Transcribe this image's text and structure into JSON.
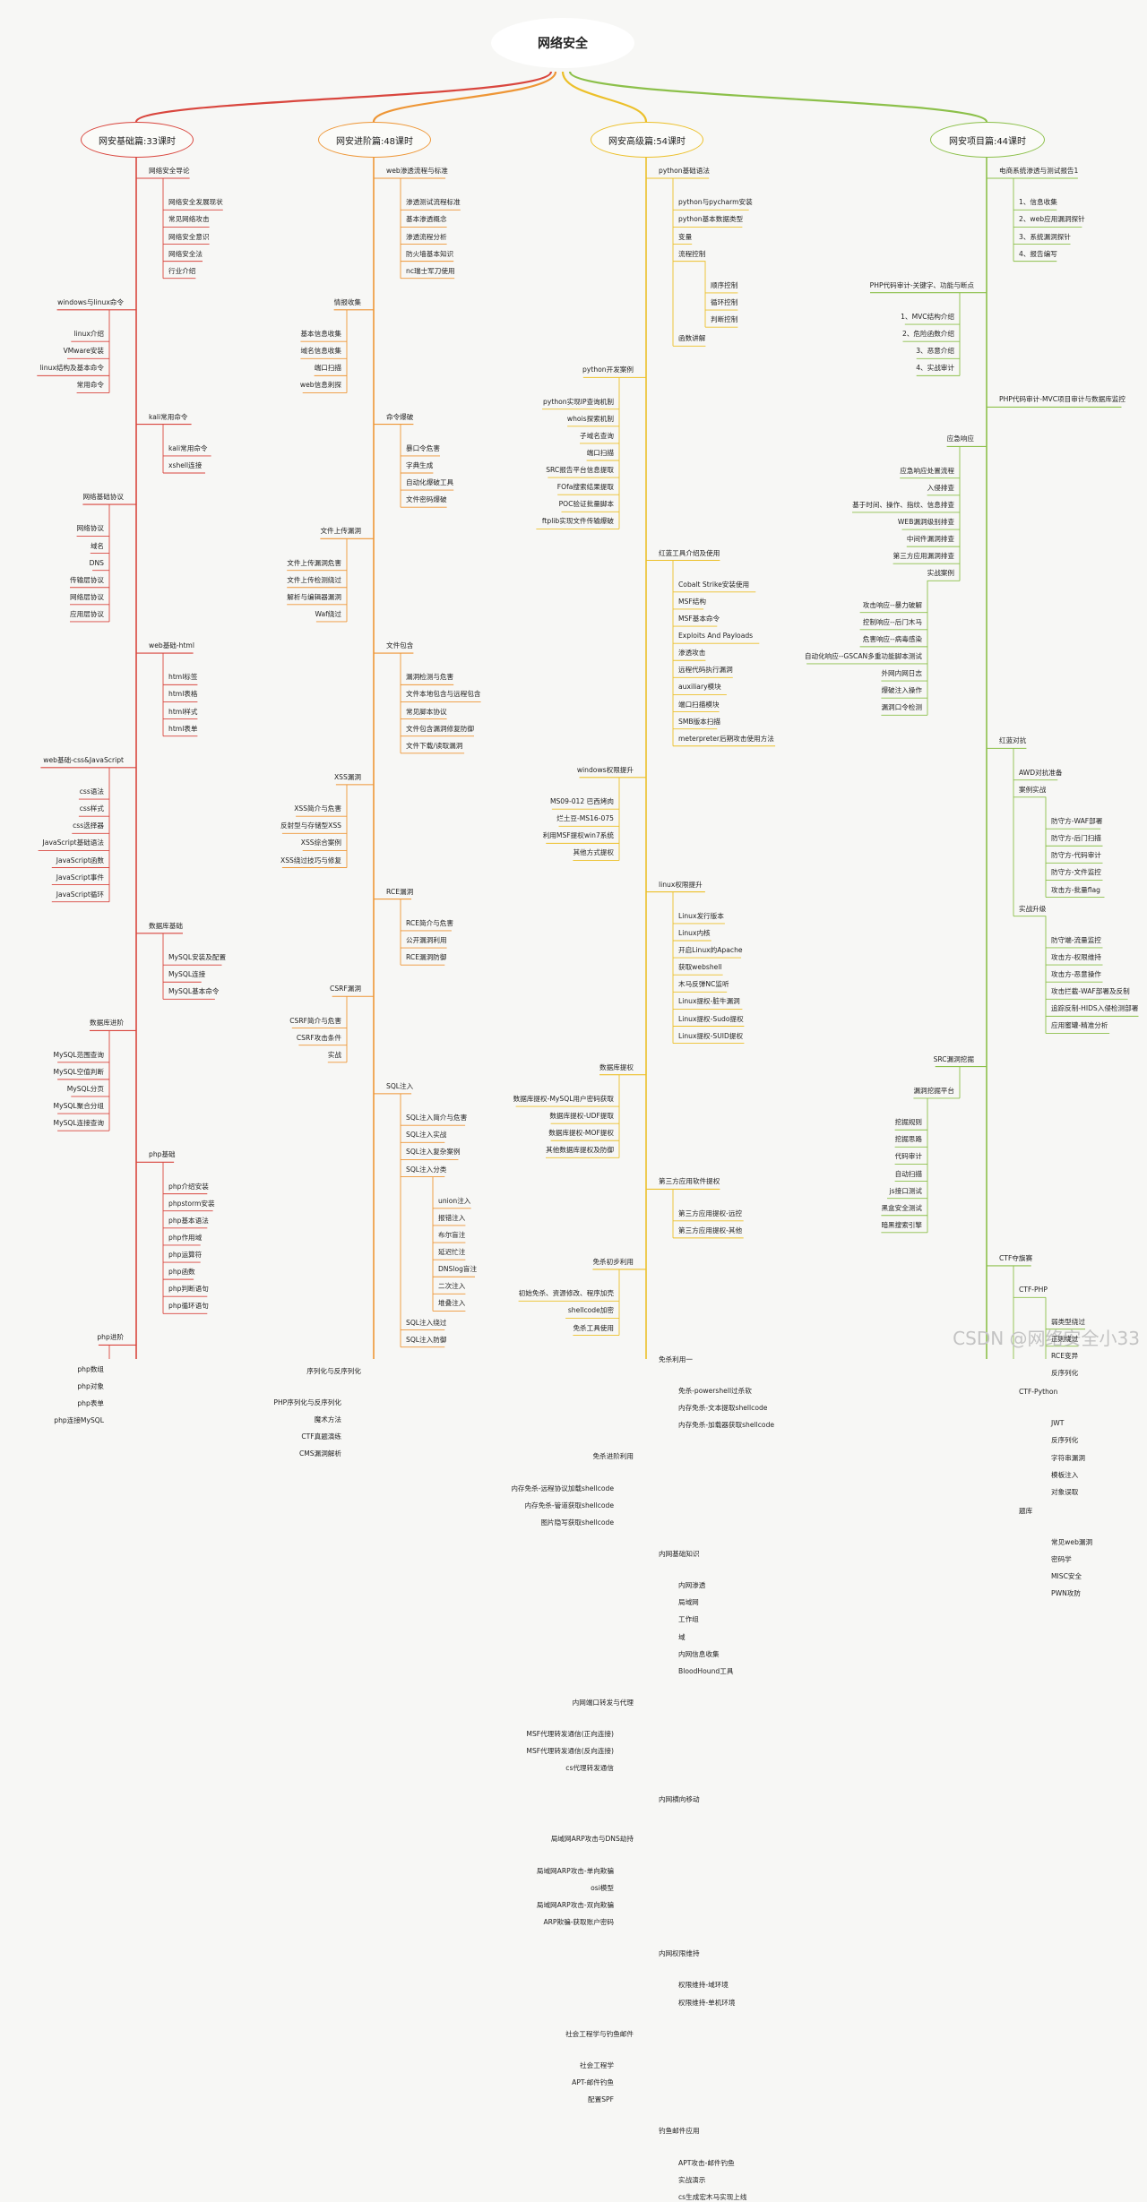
{
  "root": "网络安全",
  "watermark": "CSDN @网络安全小33",
  "colors": {
    "s0": "#d9463e",
    "s1": "#ee9636",
    "s2": "#ecc02a",
    "s3": "#8cc04a"
  },
  "sections": [
    {
      "title": "网安基础篇:33课时",
      "groups": [
        {
          "label": "网络安全导论",
          "side": "r",
          "children": [
            "网络安全发展现状",
            "常见网络攻击",
            "网络安全意识",
            "网络安全法",
            "行业介绍"
          ]
        },
        {
          "label": "windows与linux命令",
          "side": "l",
          "children": [
            "linux介绍",
            "VMware安装",
            "linux结构及基本命令",
            "常用命令"
          ]
        },
        {
          "label": "kali常用命令",
          "side": "r",
          "children": [
            "kali常用命令",
            "xshell连接"
          ]
        },
        {
          "label": "网络基础协议",
          "side": "l",
          "children": [
            "网络协议",
            "域名",
            "DNS",
            "传输层协议",
            "网络层协议",
            "应用层协议"
          ]
        },
        {
          "label": "web基础-html",
          "side": "r",
          "children": [
            "html标签",
            "html表格",
            "html样式",
            "html表单"
          ]
        },
        {
          "label": "web基础-css&JavaScript",
          "side": "l",
          "children": [
            "css语法",
            "css样式",
            "css选择器",
            "JavaScript基础语法",
            "JavaScript函数",
            "JavaScript事件",
            "JavaScript循环"
          ]
        },
        {
          "label": "数据库基础",
          "side": "r",
          "children": [
            "MySQL安装及配置",
            "MySQL连接",
            "MySQL基本命令"
          ]
        },
        {
          "label": "数据库进阶",
          "side": "l",
          "children": [
            "MySQL范围查询",
            "MySQL空值判断",
            "MySQL分页",
            "MySQL聚合分组",
            "MySQL连接查询"
          ]
        },
        {
          "label": "php基础",
          "side": "r",
          "children": [
            "php介绍安装",
            "phpstorm安装",
            "php基本语法",
            "php作用域",
            "php运算符",
            "php函数",
            "php判断语句",
            "php循环语句"
          ]
        },
        {
          "label": "php进阶",
          "side": "l",
          "children": [
            "php数组",
            "php对象",
            "php表单",
            "php连接MySQL"
          ]
        }
      ]
    },
    {
      "title": "网安进阶篇:48课时",
      "groups": [
        {
          "label": "web渗透流程与标准",
          "side": "r",
          "children": [
            "渗透测试流程标准",
            "基本渗透概念",
            "渗透流程分析",
            "防火墙基本知识",
            "nc瑞士军刀使用"
          ]
        },
        {
          "label": "情报收集",
          "side": "l",
          "children": [
            "基本信息收集",
            "域名信息收集",
            "端口扫描",
            "web信息刺探"
          ]
        },
        {
          "label": "命令爆破",
          "side": "r",
          "children": [
            "暴口令危害",
            "字典生成",
            "自动化爆破工具",
            "文件密码爆破"
          ]
        },
        {
          "label": "文件上传漏洞",
          "side": "l",
          "children": [
            "文件上传漏洞危害",
            "文件上传检测绕过",
            "解析与编辑器漏洞",
            "Waf绕过"
          ]
        },
        {
          "label": "文件包含",
          "side": "r",
          "children": [
            "漏洞检测与危害",
            "文件本地包含与远程包含",
            "常见脚本协议",
            "文件包含漏洞修复防御",
            "文件下载/读取漏洞"
          ]
        },
        {
          "label": "XSS漏洞",
          "side": "l",
          "children": [
            "XSS简介与危害",
            "反射型与存储型XSS",
            "XSS综合案例",
            "XSS绕过技巧与修复"
          ]
        },
        {
          "label": "RCE漏洞",
          "side": "r",
          "children": [
            "RCE简介与危害",
            "公开漏洞利用",
            "RCE漏洞防御"
          ]
        },
        {
          "label": "CSRF漏洞",
          "side": "l",
          "children": [
            "CSRF简介与危害",
            "CSRF攻击条件",
            "实战"
          ]
        },
        {
          "label": "SQL注入",
          "side": "r",
          "children": [
            "SQL注入简介与危害",
            "SQL注入实战",
            "SQL注入复杂案例",
            {
              "label": "SQL注入分类",
              "children": [
                "union注入",
                "报错注入",
                "布尔盲注",
                "延迟忙注",
                "DNSlog盲注",
                "二次注入",
                "堆叠注入"
              ]
            },
            "SQL注入绕过",
            "SQL注入防御"
          ]
        },
        {
          "label": "序列化与反序列化",
          "side": "l",
          "children": [
            "PHP序列化与反序列化",
            "魔术方法",
            "CTF真题演练",
            "CMS漏洞解析"
          ]
        }
      ]
    },
    {
      "title": "网安高级篇:54课时",
      "groups": [
        {
          "label": "python基础语法",
          "side": "r",
          "children": [
            "python与pycharm安装",
            "python基本数据类型",
            "变量",
            {
              "label": "流程控制",
              "children": [
                "顺序控制",
                "循环控制",
                "判断控制"
              ]
            },
            "函数讲解"
          ]
        },
        {
          "label": "python开发案例",
          "side": "l",
          "children": [
            "python实现IP查询机制",
            "whois探索机制",
            "子域名查询",
            "端口扫描",
            "SRC报告平台信息提取",
            "FOfa搜索结果提取",
            "POC验证批量脚本",
            "ftplib实现文件传输爆破"
          ]
        },
        {
          "label": "红蓝工具介绍及使用",
          "side": "r",
          "children": [
            "Cobalt Strike安装使用",
            "MSF结构",
            "MSF基本命令",
            "Exploits And Payloads",
            "渗透攻击",
            "远程代码执行漏洞",
            "auxiliary模块",
            "端口扫描模块",
            "SMB版本扫描",
            "meterpreter后期攻击使用方法"
          ]
        },
        {
          "label": "windows权限提升",
          "side": "l",
          "children": [
            "MS09-012 巴西烤肉",
            "烂土豆-MS16-075",
            "利用MSF提权win7系统",
            "其他方式提权"
          ]
        },
        {
          "label": "linux权限提升",
          "side": "r",
          "children": [
            "Linux发行版本",
            "Linux内核",
            "开启Linux的Apache",
            "获取webshell",
            "木马反弹NC监听",
            "Linux提权-脏牛漏洞",
            "Linux提权-Sudo提权",
            "Linux提权-SUID提权"
          ]
        },
        {
          "label": "数据库提权",
          "side": "l",
          "children": [
            "数据库提权-MySQL用户密码获取",
            "数据库提权-UDF提取",
            "数据库提权-MOF提权",
            "其他数据库提权及防御"
          ]
        },
        {
          "label": "第三方应用软件提权",
          "side": "r",
          "children": [
            "第三方应用提权-远控",
            "第三方应用提权-其他"
          ]
        },
        {
          "label": "免杀初步利用",
          "side": "l",
          "children": [
            "初始免杀、资源修改、程序加壳",
            "shellcode加密",
            "免杀工具使用"
          ]
        },
        {
          "label": "免杀利用一",
          "side": "r",
          "children": [
            "免杀-powershell过杀软",
            "内存免杀-文本提取shellcode",
            "内存免杀-加载器获取shellcode"
          ]
        },
        {
          "label": "免杀进阶利用",
          "side": "l",
          "children": [
            "内存免杀-远程协议加载shellcode",
            "内存免杀-管道获取shellcode",
            "图片隐写获取shellcode"
          ]
        },
        {
          "label": "内网基础知识",
          "side": "r",
          "children": [
            "内网渗透",
            "局域网",
            "工作组",
            "域",
            "内网信息收集",
            "BloodHound工具"
          ]
        },
        {
          "label": "内网端口转发与代理",
          "side": "l",
          "children": [
            "MSF代理转发通信(正向连接)",
            "MSF代理转发通信(反向连接)",
            "cs代理转发通信"
          ]
        },
        {
          "label": "内网横向移动",
          "side": "r",
          "children": []
        },
        {
          "label": "局域网ARP攻击与DNS劫持",
          "side": "l",
          "children": [
            "局域网ARP攻击-单向欺骗",
            "osi模型",
            "局域网ARP攻击-双向欺骗",
            "ARP欺骗-获取账户密码"
          ]
        },
        {
          "label": "内网权限维持",
          "side": "r",
          "children": [
            "权限维持-域环境",
            "权限维持-单机环境"
          ]
        },
        {
          "label": "社会工程学与钓鱼邮件",
          "side": "l",
          "children": [
            "社会工程学",
            "APT-邮件钓鱼",
            "配置SPF"
          ]
        },
        {
          "label": "钓鱼邮件应用",
          "side": "r",
          "children": [
            "APT攻击-邮件钓鱼",
            "实战演示",
            "cs生成宏木马实现上线"
          ]
        }
      ]
    },
    {
      "title": "网安项目篇:44课时",
      "groups": [
        {
          "label": "电商系统渗透与测试报告1",
          "side": "r",
          "children": [
            "1、信息收集",
            "2、web应用漏洞探针",
            "3、系统漏洞探针",
            "4、报告编写"
          ]
        },
        {
          "label": "PHP代码审计-关键字、功能与断点",
          "side": "l",
          "children": [
            "1、MVC结构介绍",
            "2、危险函数介绍",
            "3、恶意介绍",
            "4、实战审计"
          ]
        },
        {
          "label": "PHP代码审计-MVC项目审计与数据库监控",
          "side": "r",
          "children": []
        },
        {
          "label": "应急响应",
          "side": "l",
          "children": [
            "应急响应处置流程",
            "入侵排查",
            "基于时间、操作、指纹、信息排查",
            "WEB漏洞级别排查",
            "中间件漏洞排查",
            "第三方应用漏洞排查",
            {
              "label": "实战案例",
              "children": [
                "攻击响应--暴力破解",
                "控制响应--后门木马",
                "危害响应--病毒感染",
                "自动化响应--GSCAN多重功能脚本测试",
                "外网内网日志",
                "爆破注入操作",
                "漏洞口令检测"
              ]
            }
          ]
        },
        {
          "label": "红蓝对抗",
          "side": "r",
          "children": [
            "AWD对抗准备",
            {
              "label": "案例实战",
              "children": [
                "防守方-WAF部署",
                "防守方-后门扫描",
                "防守方-代码审计",
                "防守方-文件监控",
                "攻击方-批量flag"
              ]
            },
            {
              "label": "实战升级",
              "children": [
                "防守端-流量监控",
                "攻击方-权限维持",
                "攻击方-恶意操作",
                "攻击拦截-WAF部署及反制",
                "追踪反制-HIDS入侵检测部署",
                "应用蜜罐-精准分析"
              ]
            }
          ]
        },
        {
          "label": "SRC漏洞挖掘",
          "side": "l",
          "children": [
            {
              "label": "漏洞挖掘平台",
              "children": [
                "挖掘规则",
                "挖掘思路",
                "代码审计",
                "自动扫描",
                "js接口测试",
                "黑盒安全测试",
                "暗黑搜索引擎"
              ]
            }
          ]
        },
        {
          "label": "CTF夺旗赛",
          "side": "r",
          "children": [
            {
              "label": "CTF-PHP",
              "children": [
                "弱类型绕过",
                "正则绕过",
                "RCE变异",
                "反序列化"
              ]
            },
            {
              "label": "CTF-Python",
              "children": [
                "JWT",
                "反序列化",
                "字符串漏洞",
                "模板注入",
                "对象误取"
              ]
            },
            {
              "label": "题库",
              "children": [
                "常见web漏洞",
                "密码学",
                "MISC安全",
                "PWN攻防"
              ]
            }
          ]
        }
      ]
    }
  ]
}
